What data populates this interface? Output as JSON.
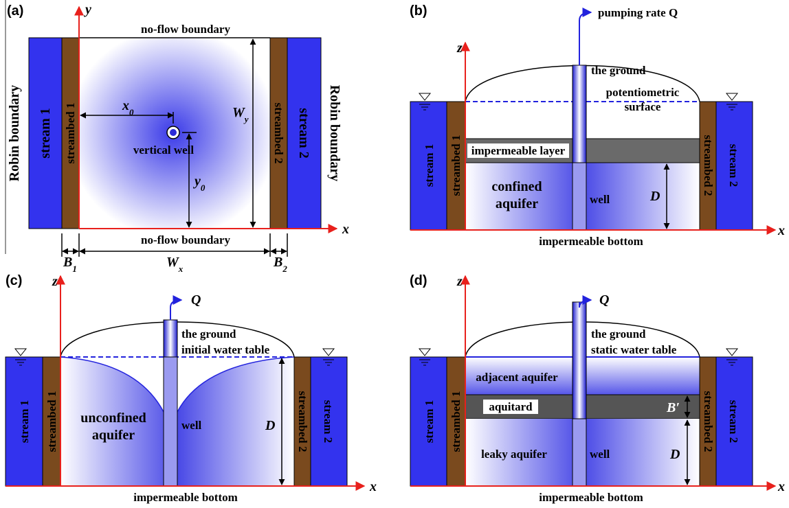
{
  "panels": [
    {
      "label": "(a)",
      "axis_y": "y",
      "axis_x": "x",
      "top_boundary": "no-flow boundary",
      "bottom_boundary": "no-flow boundary",
      "left_boundary": "Robin boundary",
      "right_boundary": "Robin boundary",
      "stream_left": "stream 1",
      "streambed_left": "streambed 1",
      "streambed_right": "streambed 2",
      "stream_right": "stream 2",
      "well": "vertical well",
      "x0": {
        "main": "x",
        "sub": "0"
      },
      "y0": {
        "main": "y",
        "sub": "0"
      },
      "wy": {
        "main": "W",
        "sub": "y"
      },
      "b1": {
        "main": "B",
        "sub": "1"
      },
      "wx": {
        "main": "W",
        "sub": "x"
      },
      "b2": {
        "main": "B",
        "sub": "2"
      }
    },
    {
      "label": "(b)",
      "axis_z": "z",
      "axis_x": "x",
      "pumping": "pumping rate Q",
      "ground": "the ground",
      "surface": [
        "potentiometric",
        "surface"
      ],
      "stream_left": "stream 1",
      "streambed_left": "streambed 1",
      "layer": "impermeable layer",
      "aquifer": [
        "confined",
        "aquifer"
      ],
      "well": "well",
      "depth": "D",
      "streambed_right": "streambed 2",
      "stream_right": "stream 2",
      "bottom": "impermeable bottom"
    },
    {
      "label": "(c)",
      "axis_z": "z",
      "axis_x": "x",
      "pumping": "Q",
      "ground": "the ground",
      "surface": "initial water table",
      "stream_left": "stream 1",
      "streambed_left": "streambed 1",
      "aquifer": [
        "unconfined",
        "aquifer"
      ],
      "well": "well",
      "depth": "D",
      "streambed_right": "streambed 2",
      "stream_right": "stream 2",
      "bottom": "impermeable bottom"
    },
    {
      "label": "(d)",
      "axis_z": "z",
      "axis_x": "x",
      "pumping": "Q",
      "ground": "the ground",
      "surface": "static water table",
      "stream_left": "stream 1",
      "streambed_left": "streambed 1",
      "upper": "adjacent aquifer",
      "aquitard": "aquitard",
      "aquitard_thickness": "B′",
      "aquifer": "leaky aquifer",
      "well": "well",
      "depth": "D",
      "streambed_right": "streambed 2",
      "stream_right": "stream 2",
      "bottom": "impermeable bottom"
    }
  ]
}
